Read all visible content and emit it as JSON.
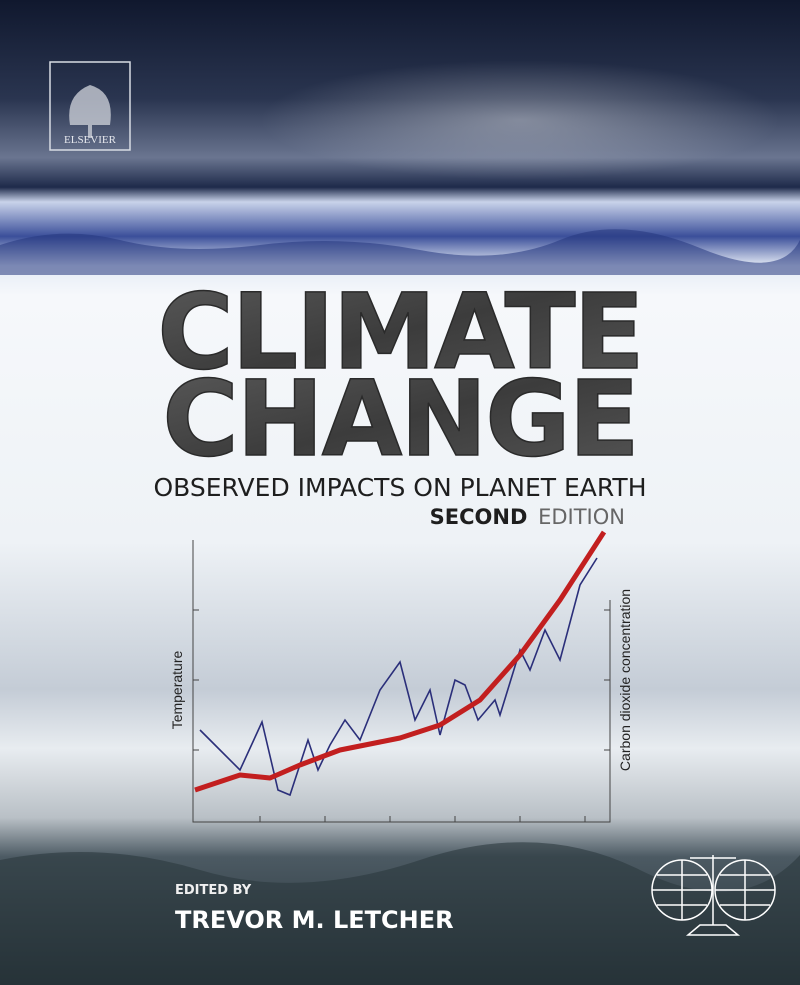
{
  "publisher": "ELSEVIER",
  "title": {
    "line1": "CLIMATE",
    "line2": "CHANGE"
  },
  "subtitle": "OBSERVED IMPACTS ON PLANET EARTH",
  "edition": {
    "ordinal": "SECOND",
    "word": "EDITION"
  },
  "chart": {
    "y_label": "Temperature",
    "y2_label": "Carbon dioxide concentration"
  },
  "editor": {
    "label": "EDITED BY",
    "name": "TREVOR M. LETCHER"
  }
}
